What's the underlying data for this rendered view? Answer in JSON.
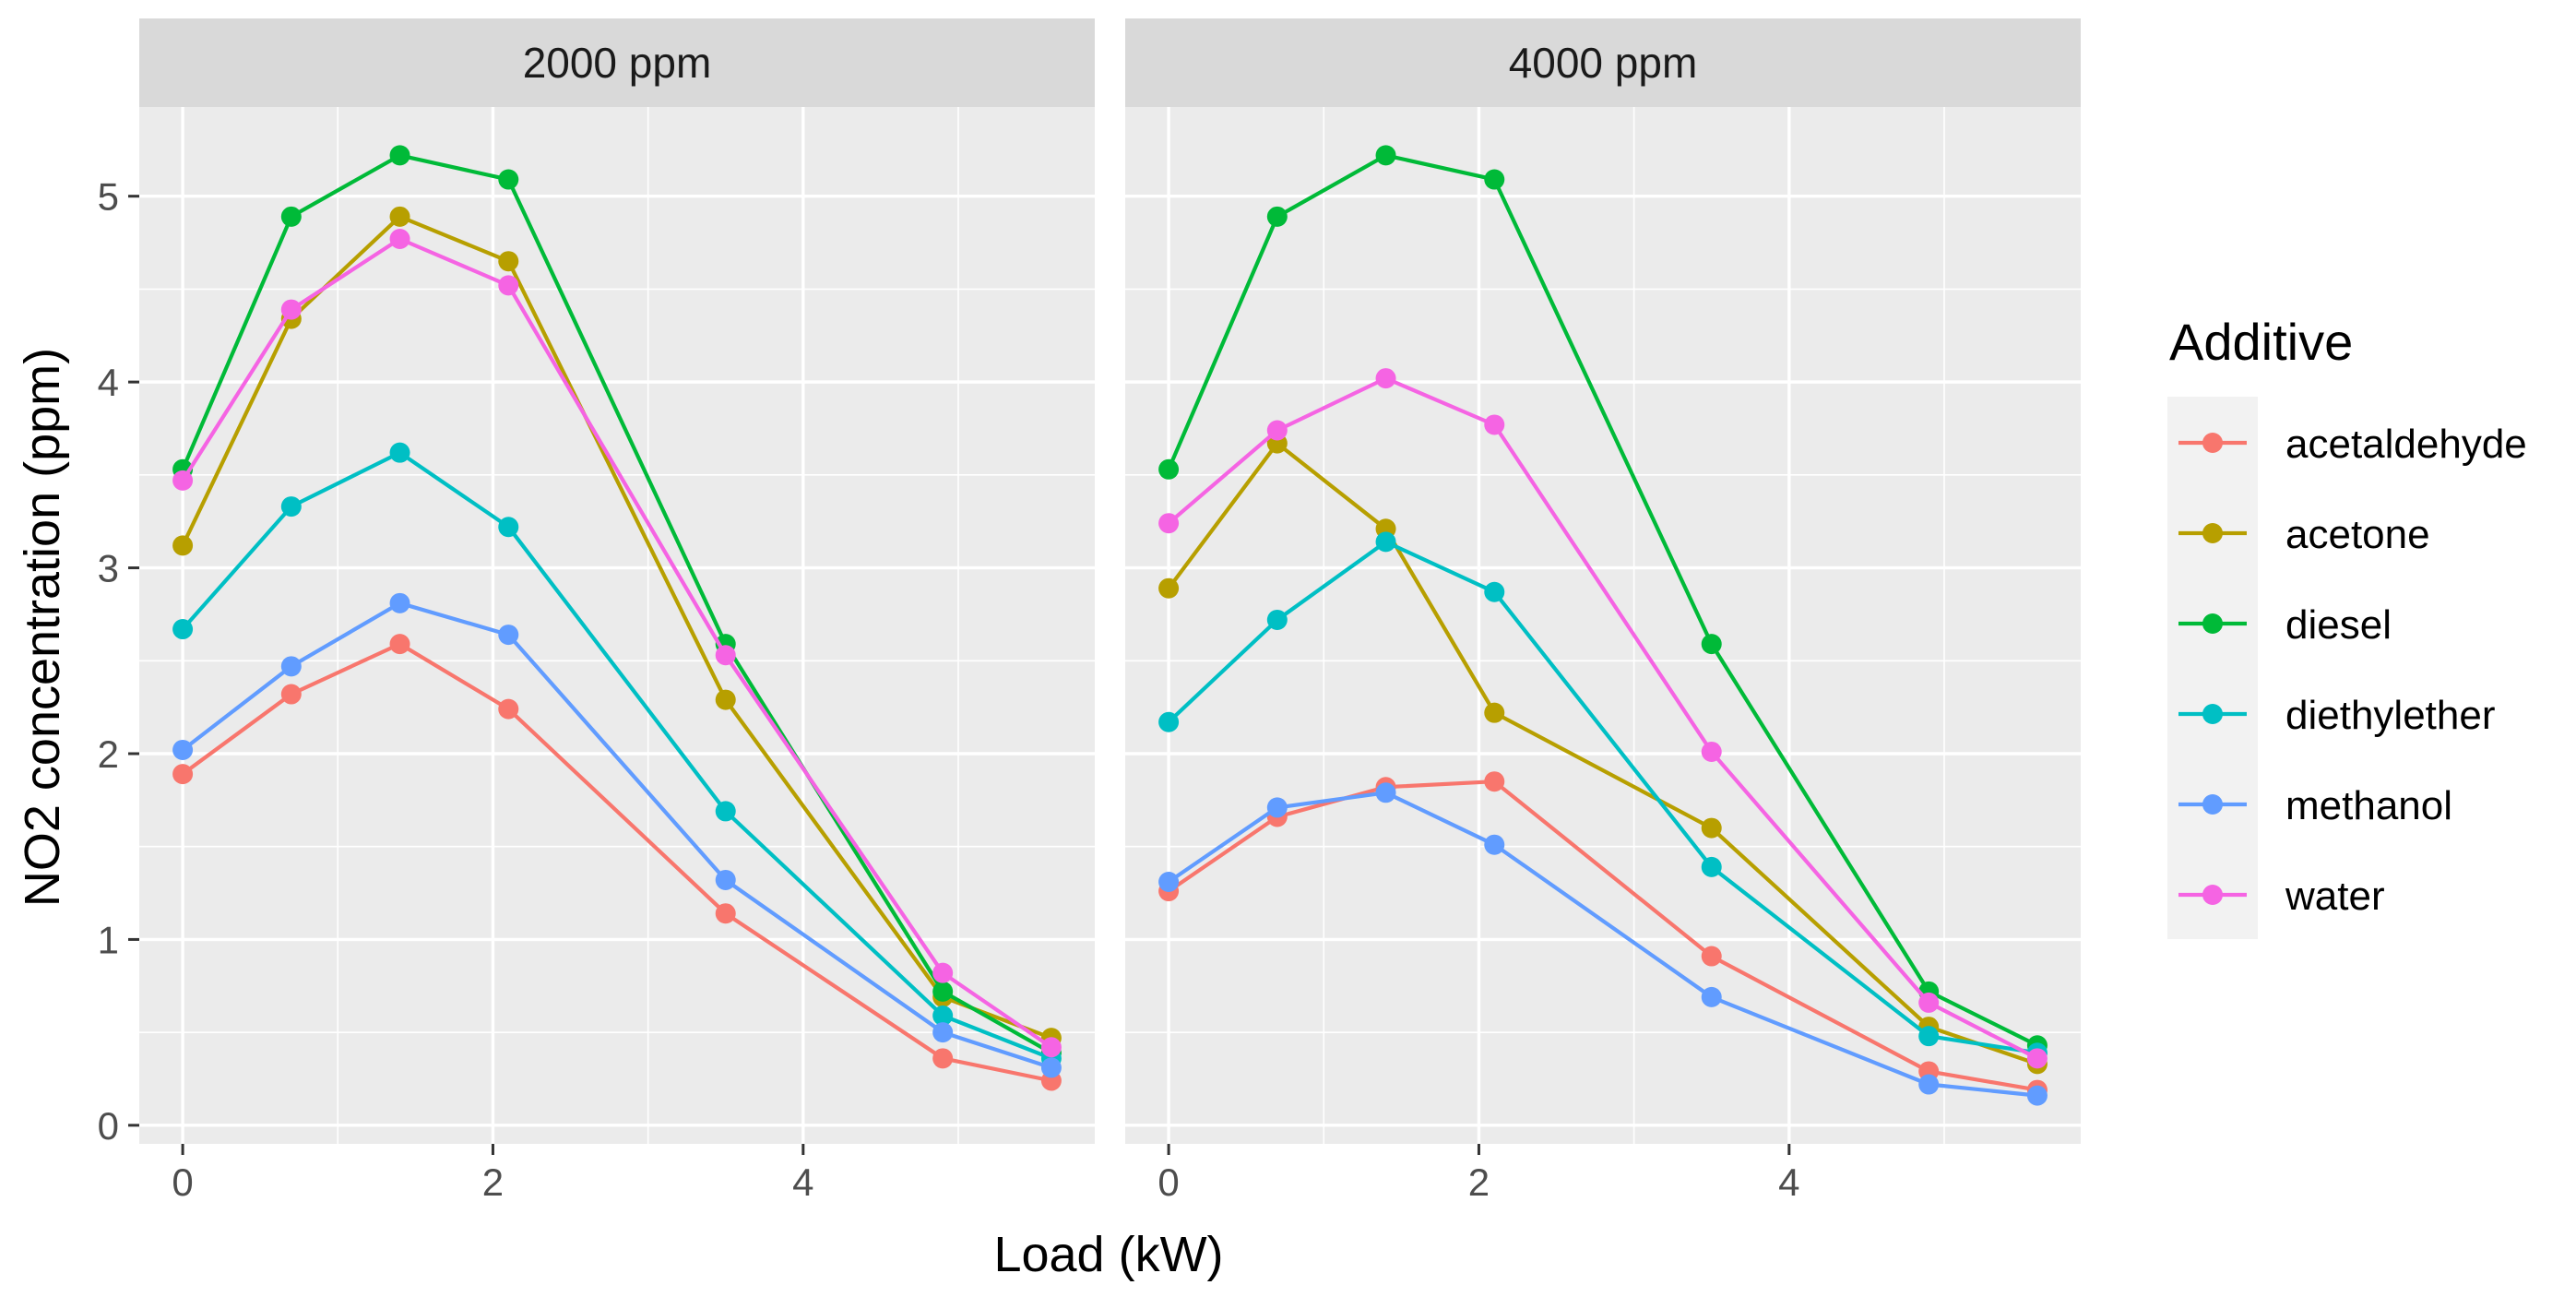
{
  "chart_data": {
    "type": "line",
    "facet_variable": "ppm",
    "panels": [
      "2000 ppm",
      "4000 ppm"
    ],
    "xlabel": "Load (kW)",
    "ylabel": "NO2 concentration (ppm)",
    "xlim": [
      -0.28,
      5.88
    ],
    "ylim": [
      -0.1,
      5.48
    ],
    "x_ticks": [
      0,
      2,
      4
    ],
    "y_ticks": [
      0,
      1,
      2,
      3,
      4,
      5
    ],
    "grid": true,
    "legend": {
      "title": "Additive",
      "position": "right"
    },
    "x": [
      0,
      0.7,
      1.4,
      2.1,
      3.5,
      4.9,
      5.6
    ],
    "series": [
      {
        "name": "acetaldehyde",
        "color": "#F8766D",
        "values_2000": [
          1.89,
          2.32,
          2.59,
          2.24,
          1.14,
          0.36,
          0.24
        ],
        "values_4000": [
          1.26,
          1.66,
          1.82,
          1.85,
          0.91,
          0.29,
          0.19
        ]
      },
      {
        "name": "acetone",
        "color": "#B79F00",
        "values_2000": [
          3.12,
          4.34,
          4.89,
          4.65,
          2.29,
          0.69,
          0.47
        ],
        "values_4000": [
          2.89,
          3.67,
          3.21,
          2.22,
          1.6,
          0.53,
          0.33
        ]
      },
      {
        "name": "diesel",
        "color": "#00BA38",
        "values_2000": [
          3.53,
          4.89,
          5.22,
          5.09,
          2.59,
          0.72,
          0.39
        ],
        "values_4000": [
          3.53,
          4.89,
          5.22,
          5.09,
          2.59,
          0.72,
          0.43
        ]
      },
      {
        "name": "diethylether",
        "color": "#00BFC4",
        "values_2000": [
          2.67,
          3.33,
          3.62,
          3.22,
          1.69,
          0.59,
          0.36
        ],
        "values_4000": [
          2.17,
          2.72,
          3.14,
          2.87,
          1.39,
          0.48,
          0.39
        ]
      },
      {
        "name": "methanol",
        "color": "#619CFF",
        "values_2000": [
          2.02,
          2.47,
          2.81,
          2.64,
          1.32,
          0.5,
          0.31
        ],
        "values_4000": [
          1.31,
          1.71,
          1.79,
          1.51,
          0.69,
          0.22,
          0.16
        ]
      },
      {
        "name": "water",
        "color": "#F564E3",
        "values_2000": [
          3.47,
          4.39,
          4.77,
          4.52,
          2.53,
          0.82,
          0.42
        ],
        "values_4000": [
          3.24,
          3.74,
          4.02,
          3.77,
          2.01,
          0.66,
          0.36
        ]
      }
    ]
  },
  "colors": {
    "panel_background": "#EBEBEB",
    "strip_background": "#D9D9D9",
    "grid_line": "#FFFFFF",
    "legend_key_background": "#F2F2F2"
  }
}
